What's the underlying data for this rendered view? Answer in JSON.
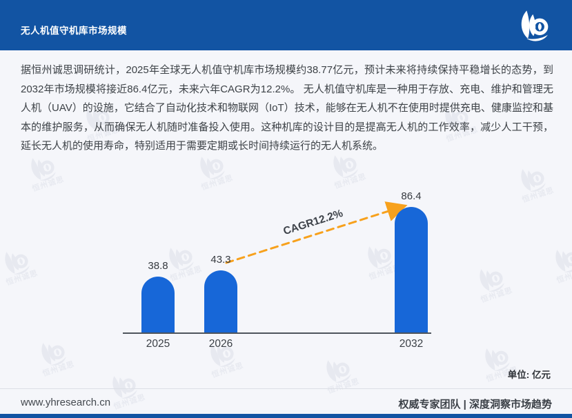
{
  "header": {
    "title": "无人机值守机库市场规模"
  },
  "intro": {
    "text": "据恒州诚思调研统计，2025年全球无人机值守机库市场规模约38.77亿元，预计未来将持续保持平稳增长的态势，到2032年市场规模将接近86.4亿元，未来六年CAGR为12.2%。 无人机值守机库是一种用于存放、充电、维护和管理无人机（UAV）的设施，它结合了自动化技术和物联网（IoT）技术，能够在无人机不在使用时提供充电、健康监控和基本的维护服务，从而确保无人机随时准备投入使用。这种机库的设计目的是提高无人机的工作效率，减少人工干预，延长无人机的使用寿命，特别适用于需要定期或长时间持续运行的无人机系统。"
  },
  "chart_data": {
    "type": "bar",
    "title": "",
    "categories": [
      "2025",
      "2026",
      "2032"
    ],
    "values": [
      38.8,
      43.3,
      86.4
    ],
    "annotation": "CAGR12.2%",
    "unit_label": "单位: 亿元",
    "xlabel": "",
    "ylabel": "",
    "ylim": [
      0,
      95
    ],
    "grid": false,
    "legend": false,
    "bar_color": "#1767d8",
    "arrow_color": "#f7a11c"
  },
  "watermark": {
    "text": "恒州诚思"
  },
  "footer": {
    "website": "www.yhresearch.cn",
    "tagline": "权威专家团队 | 深度洞察市场趋势"
  },
  "colors": {
    "header_bg": "#1254a3",
    "page_bg": "#f5f6fa",
    "bar": "#1767d8",
    "arrow": "#f7a11c",
    "text": "#3d4247"
  }
}
